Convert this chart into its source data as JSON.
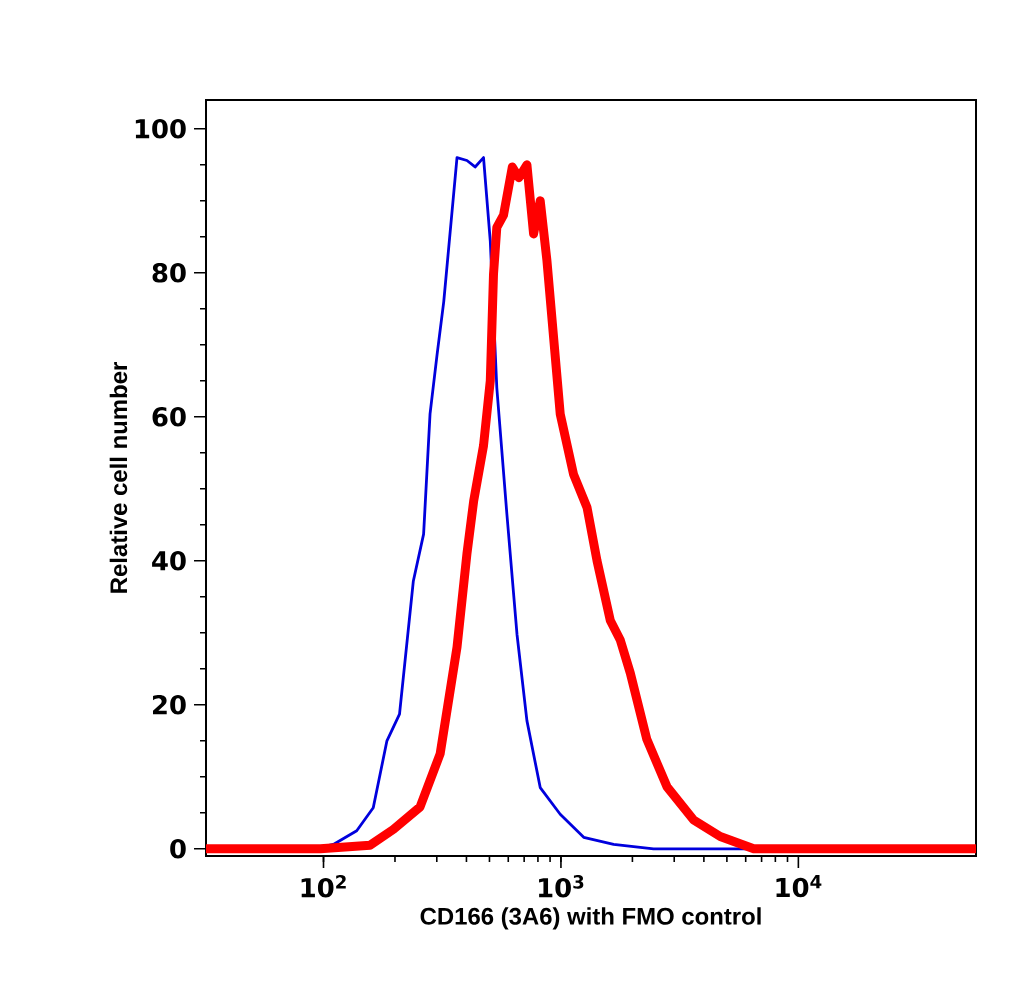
{
  "chart_data": {
    "type": "line",
    "xlabel": "CD166 (3A6) with FMO control",
    "ylabel": "Relative cell number",
    "log": "x",
    "xlim": [
      32,
      56000
    ],
    "ylim": [
      -1,
      104
    ],
    "xticks": [
      {
        "value": 100,
        "label": "10$^{2}$"
      },
      {
        "value": 1000,
        "label": "10$^{3}$"
      },
      {
        "value": 10000,
        "label": "10$^{4}$"
      }
    ],
    "yticks": [
      0,
      20,
      40,
      60,
      80,
      100
    ],
    "series": [
      {
        "color": "#0000dd",
        "x": [
          91,
          110,
          138,
          162,
          185,
          209,
          239,
          264,
          281,
          301,
          321,
          365,
          402,
          435,
          472,
          504,
          537,
          592,
          653,
          719,
          818,
          993,
          1247,
          1667,
          2455,
          6457
        ],
        "values": [
          0,
          0.6,
          2.5,
          5.7,
          15,
          18.7,
          37.2,
          43.7,
          60.4,
          68.7,
          76,
          96,
          95.6,
          94.7,
          96,
          84.4,
          64,
          46.5,
          29.8,
          17.8,
          8.5,
          4.8,
          1.6,
          0.6,
          0,
          0
        ]
      },
      {
        "color": "#ff0000",
        "x": [
          32,
          97,
          157,
          197,
          255,
          310,
          365,
          402,
          429,
          472,
          504,
          520,
          537,
          573,
          624,
          665,
          719,
          767,
          818,
          873,
          993,
          1130,
          1288,
          1419,
          1614,
          1778,
          1960,
          2300,
          2799,
          3622,
          4688,
          6486,
          8400,
          56000
        ],
        "values": [
          0,
          0,
          0.5,
          2.7,
          5.8,
          13.2,
          28,
          41,
          48.3,
          56,
          65,
          79.8,
          86.3,
          88,
          94.7,
          93.2,
          95,
          85.4,
          90,
          81.7,
          60.4,
          52,
          47.4,
          40,
          31.7,
          29,
          24.4,
          15.2,
          8.6,
          4,
          1.7,
          0,
          0,
          0
        ]
      }
    ]
  }
}
